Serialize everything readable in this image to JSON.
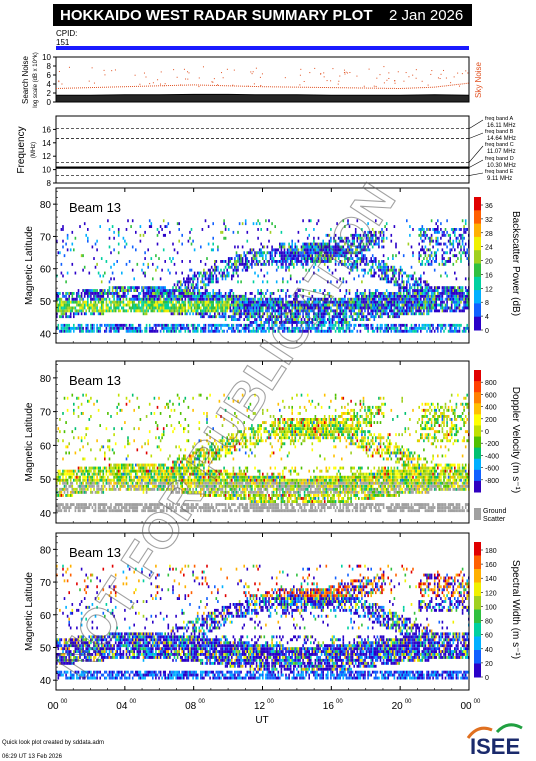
{
  "header": {
    "title": "HOKKAIDO WEST RADAR SUMMARY PLOT",
    "date": "2 Jan 2026",
    "cpid_label": "CPID:",
    "cpid_value": "151"
  },
  "footer": {
    "credit_line1": "Quick look plot created by sddata.adm",
    "credit_line2": "06:29 UT 13 Feb 2026",
    "logo_text": "ISEE"
  },
  "watermark": "NOT FOR PUBLICATION",
  "colors": {
    "cpid_bar": "#1a1aff",
    "sky_noise": "#e05020",
    "ground_scatter": "#a0a0a0"
  },
  "chart_data": [
    {
      "type": "line",
      "title": "",
      "ylabel": "Search Noise",
      "ylabel_sub": "log scale (dB x 10^k)",
      "ylim": [
        0,
        10
      ],
      "yticks": [
        0,
        2,
        4,
        6,
        8,
        10
      ],
      "x": [
        0,
        2,
        4,
        6,
        8,
        10,
        12,
        14,
        16,
        18,
        20,
        22,
        24
      ],
      "series": [
        {
          "name": "Sky Noise",
          "values": [
            3.0,
            3.2,
            3.4,
            3.6,
            3.8,
            3.6,
            3.4,
            3.3,
            3.2,
            3.1,
            3.0,
            3.3,
            4.2
          ]
        },
        {
          "name": "Search Noise",
          "values": [
            1.5,
            1.5,
            1.6,
            1.6,
            1.7,
            1.7,
            1.6,
            1.6,
            1.5,
            1.5,
            1.5,
            1.6,
            1.5
          ]
        }
      ]
    },
    {
      "type": "line",
      "ylabel": "Frequency",
      "ylabel_unit": "(MHz)",
      "ylim": [
        8,
        18
      ],
      "yticks": [
        8,
        10,
        12,
        14,
        16
      ],
      "freq_bands": [
        {
          "label": "freq band A",
          "value": "16.11 MHz",
          "mhz": 16.11
        },
        {
          "label": "freq band B",
          "value": "14.64 MHz",
          "mhz": 14.64
        },
        {
          "label": "freq band C",
          "value": "11.07 MHz",
          "mhz": 11.07
        },
        {
          "label": "freq band D",
          "value": "10.30 MHz",
          "mhz": 10.3
        },
        {
          "label": "freq band E",
          "value": "9.11 MHz",
          "mhz": 9.11
        }
      ],
      "operating_freq_mhz": 10.3
    },
    {
      "type": "heatmap",
      "beam_label": "Beam 13",
      "ylabel": "Magnetic Latitude",
      "ylim": [
        37,
        85
      ],
      "yticks": [
        40,
        50,
        60,
        70,
        80
      ],
      "colorbar_label": "Backscatter Power (dB)",
      "colorbar_ticks": [
        0,
        4,
        8,
        12,
        16,
        20,
        24,
        28,
        32,
        36
      ],
      "colorbar_colors": [
        "#2a00c8",
        "#1060ff",
        "#00b0ff",
        "#00d0a0",
        "#30c040",
        "#a0d020",
        "#f0f000",
        "#ffb000",
        "#ff6000",
        "#e00000"
      ]
    },
    {
      "type": "heatmap",
      "beam_label": "Beam 13",
      "ylabel": "Magnetic Latitude",
      "ylim": [
        37,
        85
      ],
      "yticks": [
        40,
        50,
        60,
        70,
        80
      ],
      "colorbar_label": "Doppler Velocity (m s⁻¹)",
      "colorbar_ticks": [
        800,
        600,
        400,
        200,
        0,
        -200,
        -400,
        -600,
        -800
      ],
      "colorbar_colors": [
        "#3000c0",
        "#1060ff",
        "#00b0ff",
        "#00c070",
        "#50c000",
        "#c0e000",
        "#ffff00",
        "#ffc000",
        "#ff8000",
        "#ff4000",
        "#e00000"
      ],
      "ground_scatter_label": "Ground Scatter"
    },
    {
      "type": "heatmap",
      "beam_label": "Beam 13",
      "ylabel": "Magnetic Latitude",
      "ylim": [
        37,
        85
      ],
      "yticks": [
        40,
        50,
        60,
        70,
        80
      ],
      "colorbar_label": "Spectral Width (m s⁻¹)",
      "colorbar_ticks": [
        0,
        20,
        40,
        60,
        80,
        100,
        120,
        140,
        160,
        180
      ],
      "colorbar_colors": [
        "#2a00c8",
        "#1060ff",
        "#00b0ff",
        "#00d0a0",
        "#30c040",
        "#a0d020",
        "#f0f000",
        "#ffb000",
        "#ff6000",
        "#e00000"
      ],
      "xlabel": "UT",
      "xticks": [
        "00",
        "04",
        "08",
        "12",
        "16",
        "20",
        "00"
      ],
      "xtick_sup": "00"
    }
  ]
}
